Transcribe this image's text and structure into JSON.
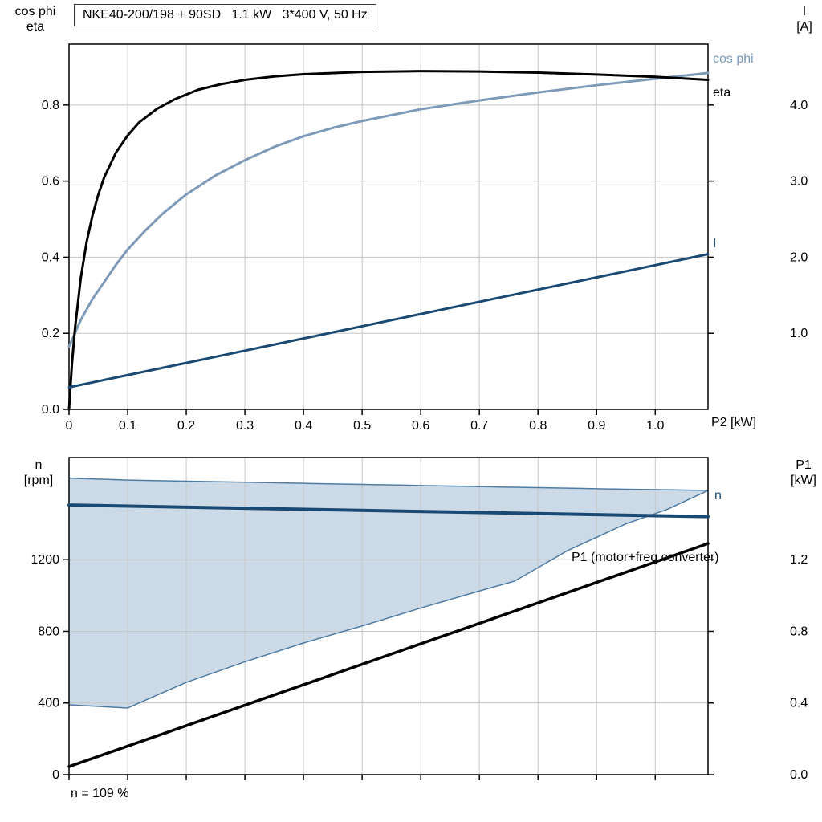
{
  "colors": {
    "eta": "#000000",
    "cos_phi": "#7d9bb8",
    "current": "#1a4a73",
    "speed": "#1a4a73",
    "p1": "#000000",
    "band_fill": "#ccdae8",
    "band_stroke": "#4f7ca3",
    "grid": "#c6c6c6",
    "frame": "#000000"
  },
  "chart_data": [
    {
      "type": "line",
      "title": "NKE40-200/198 + 90SD   1.1 kW   3*400 V, 50 Hz",
      "xlabel": "P2 [kW]",
      "ylabel_left": [
        "cos phi",
        "eta"
      ],
      "ylabel_right": [
        "I",
        "[A]"
      ],
      "xlim": [
        0,
        1.09
      ],
      "ylim_left": [
        0,
        0.96
      ],
      "ylim_right": [
        0,
        4.8
      ],
      "grid": true,
      "x_ticks": {
        "values": [
          0,
          0.1,
          0.2,
          0.3,
          0.4,
          0.5,
          0.6,
          0.7,
          0.8,
          0.9,
          1.0
        ],
        "labels": [
          "0",
          "0.1",
          "0.2",
          "0.3",
          "0.4",
          "0.5",
          "0.6",
          "0.7",
          "0.8",
          "0.9",
          "1.0"
        ]
      },
      "y_ticks_left": {
        "values": [
          0,
          0.2,
          0.4,
          0.6,
          0.8
        ],
        "labels": [
          "0.0",
          "0.2",
          "0.4",
          "0.6",
          "0.8"
        ]
      },
      "y_ticks_right": {
        "values": [
          1,
          2,
          3,
          4
        ],
        "labels": [
          "1.0",
          "2.0",
          "3.0",
          "4.0"
        ]
      },
      "series": [
        {
          "name": "cos phi",
          "axis": "left",
          "color_key": "cos_phi",
          "width": 3,
          "x": [
            0,
            0.02,
            0.04,
            0.06,
            0.08,
            0.1,
            0.13,
            0.16,
            0.2,
            0.25,
            0.3,
            0.35,
            0.4,
            0.45,
            0.5,
            0.6,
            0.7,
            0.8,
            0.9,
            1.0,
            1.09
          ],
          "y": [
            0.165,
            0.235,
            0.29,
            0.335,
            0.38,
            0.42,
            0.47,
            0.515,
            0.565,
            0.615,
            0.655,
            0.69,
            0.718,
            0.74,
            0.758,
            0.789,
            0.812,
            0.833,
            0.852,
            0.869,
            0.884
          ]
        },
        {
          "name": "eta",
          "axis": "left",
          "color_key": "eta",
          "width": 3,
          "x": [
            0,
            0.005,
            0.01,
            0.02,
            0.03,
            0.04,
            0.05,
            0.06,
            0.08,
            0.1,
            0.12,
            0.15,
            0.18,
            0.22,
            0.26,
            0.3,
            0.35,
            0.4,
            0.5,
            0.6,
            0.7,
            0.8,
            0.9,
            1.0,
            1.09
          ],
          "y": [
            0,
            0.12,
            0.21,
            0.345,
            0.44,
            0.51,
            0.565,
            0.61,
            0.675,
            0.72,
            0.755,
            0.79,
            0.815,
            0.84,
            0.855,
            0.866,
            0.875,
            0.881,
            0.887,
            0.889,
            0.888,
            0.885,
            0.88,
            0.874,
            0.866
          ]
        },
        {
          "name": "I",
          "axis": "right",
          "color_key": "current",
          "width": 3,
          "x": [
            0,
            1.09
          ],
          "y": [
            0.29,
            2.04
          ]
        }
      ]
    },
    {
      "type": "line",
      "title": "",
      "xlabel": "",
      "ylabel_left": [
        "n",
        "[rpm]"
      ],
      "ylabel_right": [
        "P1",
        "[kW]"
      ],
      "xlim": [
        0,
        1.09
      ],
      "ylim_left": [
        0,
        1770
      ],
      "ylim_right": [
        0,
        1.77
      ],
      "grid": true,
      "footnote": "n = 109 %",
      "x_ticks": {
        "values": [
          0,
          0.1,
          0.2,
          0.3,
          0.4,
          0.5,
          0.6,
          0.7,
          0.8,
          0.9,
          1.0
        ],
        "labels": []
      },
      "y_ticks_left": {
        "values": [
          0,
          400,
          800,
          1200
        ],
        "labels": [
          "0",
          "400",
          "800",
          "1200"
        ]
      },
      "y_ticks_right": {
        "values": [
          0,
          0.4,
          0.8,
          1.2
        ],
        "labels": [
          "0.0",
          "0.4",
          "0.8",
          "1.2"
        ]
      },
      "band": {
        "name": "speed-control-range",
        "x": [
          0,
          0.1,
          0.2,
          0.3,
          0.4,
          0.5,
          0.6,
          0.7,
          0.76,
          0.85,
          0.95,
          1.02,
          1.09
        ],
        "upper": [
          1655,
          1644,
          1638,
          1632,
          1626,
          1620,
          1614,
          1608,
          1604,
          1599,
          1593,
          1590,
          1586
        ],
        "lower": [
          390,
          372,
          515,
          630,
          735,
          830,
          930,
          1025,
          1080,
          1250,
          1400,
          1480,
          1586
        ]
      },
      "series": [
        {
          "name": "n",
          "axis": "left",
          "color_key": "speed",
          "width": 4,
          "x": [
            0,
            1.09
          ],
          "y": [
            1505,
            1440
          ]
        },
        {
          "name": "P1 (motor+freq.converter)",
          "axis": "right",
          "color_key": "p1",
          "width": 3.5,
          "x": [
            0,
            1.09
          ],
          "y": [
            0.045,
            1.29
          ]
        }
      ]
    }
  ]
}
